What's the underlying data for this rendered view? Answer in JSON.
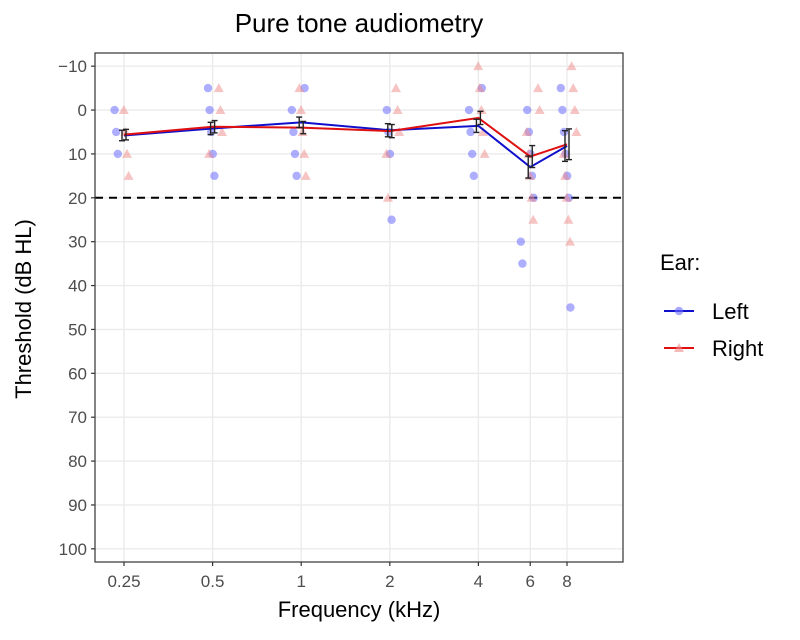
{
  "chart_data": {
    "type": "line",
    "title": "Pure tone audiometry",
    "xlabel": "Frequency (kHz)",
    "ylabel": "Threshold (dB HL)",
    "x_ticks": [
      "0.25",
      "0.5",
      "1",
      "2",
      "4",
      "6",
      "8"
    ],
    "x_scale": "log2",
    "y_ticks": [
      "−10",
      "0",
      "10",
      "20",
      "30",
      "40",
      "50",
      "60",
      "70",
      "80",
      "90",
      "100"
    ],
    "y_tick_values": [
      -10,
      0,
      10,
      20,
      30,
      40,
      50,
      60,
      70,
      80,
      90,
      100
    ],
    "ylim": [
      103,
      -13
    ],
    "y_reversed": true,
    "grid": true,
    "reference_line": {
      "y": 20,
      "style": "dashed",
      "color": "#000000"
    },
    "legend": {
      "title": "Ear:",
      "placement": "right"
    },
    "series": [
      {
        "name": "Left",
        "color": "#1010cc",
        "point_color": "#6b6bff",
        "marker": "circle",
        "mean": [
          {
            "x": 0.25,
            "y": 5.8,
            "err": 1.2
          },
          {
            "x": 0.5,
            "y": 4.2,
            "err": 1.4
          },
          {
            "x": 1,
            "y": 2.8,
            "err": 1.2
          },
          {
            "x": 2,
            "y": 4.6,
            "err": 1.5
          },
          {
            "x": 4,
            "y": 3.6,
            "err": 1.5
          },
          {
            "x": 6,
            "y": 13.0,
            "err": 2.5
          },
          {
            "x": 8,
            "y": 8.2,
            "err": 3.5
          }
        ],
        "points": [
          {
            "x": 0.25,
            "y": 0
          },
          {
            "x": 0.25,
            "y": 5
          },
          {
            "x": 0.25,
            "y": 10
          },
          {
            "x": 0.5,
            "y": -5
          },
          {
            "x": 0.5,
            "y": 0
          },
          {
            "x": 0.5,
            "y": 5
          },
          {
            "x": 0.5,
            "y": 10
          },
          {
            "x": 0.5,
            "y": 15
          },
          {
            "x": 1,
            "y": -5
          },
          {
            "x": 1,
            "y": 0
          },
          {
            "x": 1,
            "y": 5
          },
          {
            "x": 1,
            "y": 10
          },
          {
            "x": 1,
            "y": 15
          },
          {
            "x": 2,
            "y": 0
          },
          {
            "x": 2,
            "y": 5
          },
          {
            "x": 2,
            "y": 10
          },
          {
            "x": 2,
            "y": 25
          },
          {
            "x": 4,
            "y": -5
          },
          {
            "x": 4,
            "y": 0
          },
          {
            "x": 4,
            "y": 5
          },
          {
            "x": 4,
            "y": 10
          },
          {
            "x": 4,
            "y": 15
          },
          {
            "x": 6,
            "y": 0
          },
          {
            "x": 6,
            "y": 5
          },
          {
            "x": 6,
            "y": 10
          },
          {
            "x": 6,
            "y": 15
          },
          {
            "x": 6,
            "y": 20
          },
          {
            "x": 6,
            "y": 30
          },
          {
            "x": 6,
            "y": 35
          },
          {
            "x": 8,
            "y": -5
          },
          {
            "x": 8,
            "y": 0
          },
          {
            "x": 8,
            "y": 5
          },
          {
            "x": 8,
            "y": 10
          },
          {
            "x": 8,
            "y": 15
          },
          {
            "x": 8,
            "y": 20
          },
          {
            "x": 8,
            "y": 45
          }
        ]
      },
      {
        "name": "Right",
        "color": "#e01010",
        "point_color": "#f08a8a",
        "marker": "triangle",
        "mean": [
          {
            "x": 0.25,
            "y": 5.6,
            "err": 1.2
          },
          {
            "x": 0.5,
            "y": 3.8,
            "err": 1.4
          },
          {
            "x": 1,
            "y": 4.0,
            "err": 1.4
          },
          {
            "x": 2,
            "y": 4.8,
            "err": 1.5
          },
          {
            "x": 4,
            "y": 1.8,
            "err": 1.5
          },
          {
            "x": 6,
            "y": 10.6,
            "err": 2.5
          },
          {
            "x": 8,
            "y": 7.8,
            "err": 3.5
          }
        ],
        "points": [
          {
            "x": 0.25,
            "y": 0
          },
          {
            "x": 0.25,
            "y": 5
          },
          {
            "x": 0.25,
            "y": 10
          },
          {
            "x": 0.25,
            "y": 15
          },
          {
            "x": 0.5,
            "y": -5
          },
          {
            "x": 0.5,
            "y": 0
          },
          {
            "x": 0.5,
            "y": 5
          },
          {
            "x": 0.5,
            "y": 10
          },
          {
            "x": 1,
            "y": -5
          },
          {
            "x": 1,
            "y": 0
          },
          {
            "x": 1,
            "y": 5
          },
          {
            "x": 1,
            "y": 10
          },
          {
            "x": 1,
            "y": 15
          },
          {
            "x": 2,
            "y": -5
          },
          {
            "x": 2,
            "y": 0
          },
          {
            "x": 2,
            "y": 5
          },
          {
            "x": 2,
            "y": 10
          },
          {
            "x": 2,
            "y": 20
          },
          {
            "x": 4,
            "y": -10
          },
          {
            "x": 4,
            "y": -5
          },
          {
            "x": 4,
            "y": 0
          },
          {
            "x": 4,
            "y": 5
          },
          {
            "x": 4,
            "y": 10
          },
          {
            "x": 6,
            "y": -5
          },
          {
            "x": 6,
            "y": 0
          },
          {
            "x": 6,
            "y": 5
          },
          {
            "x": 6,
            "y": 10
          },
          {
            "x": 6,
            "y": 15
          },
          {
            "x": 6,
            "y": 20
          },
          {
            "x": 6,
            "y": 25
          },
          {
            "x": 8,
            "y": -10
          },
          {
            "x": 8,
            "y": -5
          },
          {
            "x": 8,
            "y": 0
          },
          {
            "x": 8,
            "y": 5
          },
          {
            "x": 8,
            "y": 10
          },
          {
            "x": 8,
            "y": 15
          },
          {
            "x": 8,
            "y": 20
          },
          {
            "x": 8,
            "y": 25
          },
          {
            "x": 8,
            "y": 30
          }
        ]
      }
    ]
  }
}
